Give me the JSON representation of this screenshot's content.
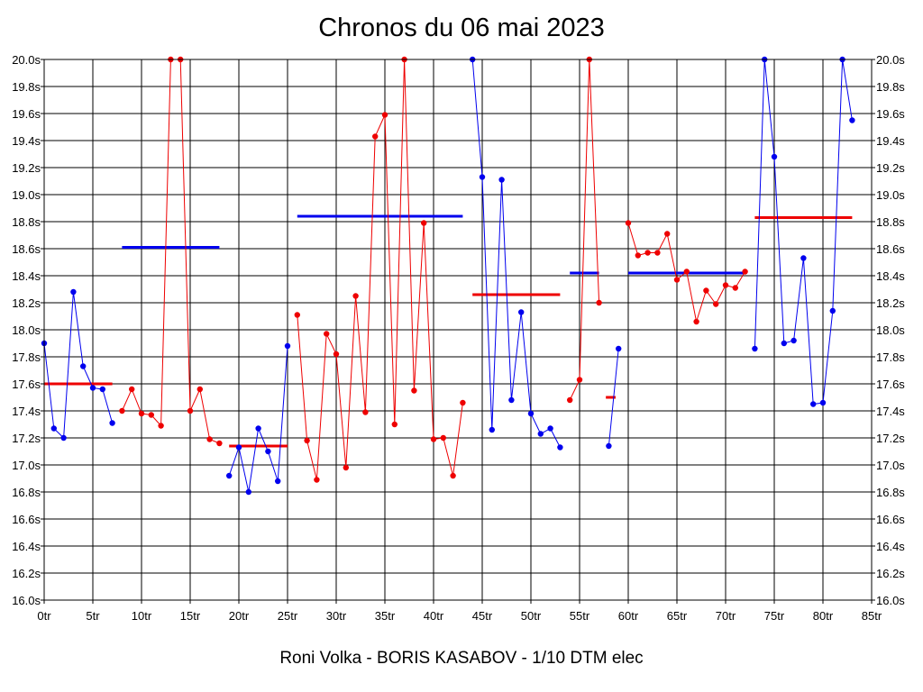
{
  "chart_data": {
    "type": "line",
    "title": "Chronos du 06 mai 2023",
    "footer": "Roni Volka - BORIS KASABOV - 1/10 DTM elec",
    "xlim": [
      0,
      85
    ],
    "ylim": [
      16.0,
      20.0
    ],
    "x_ticks": [
      0,
      5,
      10,
      15,
      20,
      25,
      30,
      35,
      40,
      45,
      50,
      55,
      60,
      65,
      70,
      75,
      80,
      85
    ],
    "x_tick_labels": [
      "0tr",
      "5tr",
      "10tr",
      "15tr",
      "20tr",
      "25tr",
      "30tr",
      "35tr",
      "40tr",
      "45tr",
      "50tr",
      "55tr",
      "60tr",
      "65tr",
      "70tr",
      "75tr",
      "80tr",
      "85tr"
    ],
    "y_ticks": [
      16.0,
      16.2,
      16.4,
      16.6,
      16.8,
      17.0,
      17.2,
      17.4,
      17.6,
      17.8,
      18.0,
      18.2,
      18.4,
      18.6,
      18.8,
      19.0,
      19.2,
      19.4,
      19.6,
      19.8,
      20.0
    ],
    "y_tick_labels": [
      "16.0s",
      "16.2s",
      "16.4s",
      "16.6s",
      "16.8s",
      "17.0s",
      "17.2s",
      "17.4s",
      "17.6s",
      "17.8s",
      "18.0s",
      "18.2s",
      "18.4s",
      "18.6s",
      "18.8s",
      "19.0s",
      "19.2s",
      "19.4s",
      "19.6s",
      "19.8s",
      "20.0s"
    ],
    "grid": true,
    "colors": {
      "blue": "#0000ee",
      "red": "#ee0000",
      "grid": "#000000"
    },
    "series": [
      {
        "color": "#0000ee",
        "x": [
          0,
          1,
          2,
          3,
          4,
          5,
          6,
          7
        ],
        "y": [
          17.9,
          17.27,
          17.2,
          18.28,
          17.73,
          17.57,
          17.56,
          17.31
        ],
        "avg": {
          "x": [
            0,
            7
          ],
          "value": 17.6,
          "color": "#ee0000"
        }
      },
      {
        "color": "#ee0000",
        "x": [
          8,
          9,
          10,
          11,
          12,
          13,
          14,
          15,
          16,
          17,
          18
        ],
        "y": [
          17.4,
          17.56,
          17.38,
          17.37,
          17.29,
          20.0,
          20.0,
          17.4,
          17.56,
          17.19,
          17.16
        ],
        "avg": {
          "x": [
            8,
            18
          ],
          "value": 18.61,
          "color": "#0000ee"
        }
      },
      {
        "color": "#0000ee",
        "x": [
          19,
          20,
          21,
          22,
          23,
          24,
          25
        ],
        "y": [
          16.92,
          17.13,
          16.8,
          17.27,
          17.1,
          16.88,
          17.88
        ],
        "avg": {
          "x": [
            19,
            25
          ],
          "value": 17.14,
          "color": "#ee0000"
        }
      },
      {
        "color": "#ee0000",
        "x": [
          26,
          27,
          28,
          29,
          30,
          31,
          32,
          33,
          34,
          35,
          36,
          37,
          38,
          39,
          40,
          41,
          42,
          43
        ],
        "y": [
          18.11,
          17.18,
          16.89,
          17.97,
          17.82,
          16.98,
          18.25,
          17.39,
          19.43,
          19.59,
          17.3,
          20.0,
          17.55,
          18.79,
          17.19,
          17.2,
          16.92,
          17.46
        ],
        "avg": {
          "x": [
            26,
            43
          ],
          "value": 18.84,
          "color": "#0000ee"
        }
      },
      {
        "color": "#0000ee",
        "x": [
          44,
          45,
          46,
          47,
          48,
          49,
          50,
          51,
          52,
          53
        ],
        "y": [
          20.0,
          19.13,
          17.26,
          19.11,
          17.48,
          18.13,
          17.38,
          17.23,
          17.27,
          17.13
        ],
        "avg": {
          "x": [
            44,
            53
          ],
          "value": 18.26,
          "color": "#ee0000"
        }
      },
      {
        "color": "#ee0000",
        "x": [
          54,
          55,
          56,
          57
        ],
        "y": [
          17.48,
          17.63,
          20.0,
          18.2
        ],
        "avg": {
          "x": [
            54,
            57
          ],
          "value": 18.42,
          "color": "#0000ee"
        }
      },
      {
        "color": "#0000ee",
        "x": [
          58,
          59
        ],
        "y": [
          17.14,
          17.86
        ],
        "avg": {
          "x": [
            57.7,
            58.7
          ],
          "value": 17.5,
          "color": "#ee0000"
        }
      },
      {
        "color": "#ee0000",
        "x": [
          60,
          61,
          62,
          63,
          64,
          65,
          66,
          67,
          68,
          69,
          70,
          71,
          72
        ],
        "y": [
          18.79,
          18.55,
          18.57,
          18.57,
          18.71,
          18.37,
          18.43,
          18.06,
          18.29,
          18.19,
          18.33,
          18.31,
          18.43
        ],
        "avg": {
          "x": [
            60,
            72
          ],
          "value": 18.42,
          "color": "#0000ee"
        }
      },
      {
        "color": "#0000ee",
        "x": [
          73,
          74,
          75,
          76,
          77,
          78,
          79,
          80,
          81,
          82,
          83
        ],
        "y": [
          17.86,
          20.0,
          19.28,
          17.9,
          17.92,
          18.53,
          17.45,
          17.46,
          18.14,
          20.0,
          19.55
        ],
        "avg": {
          "x": [
            73,
            83
          ],
          "value": 18.83,
          "color": "#ee0000"
        }
      }
    ]
  }
}
